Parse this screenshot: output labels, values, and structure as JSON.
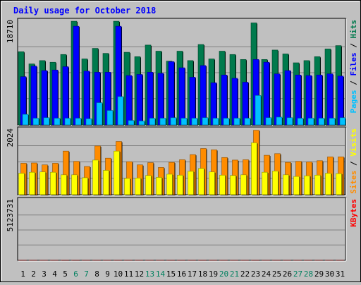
{
  "title": "Daily usage for October 2018",
  "colors": {
    "background": "#c0c0c0",
    "plot_bg": "#c0c0c0",
    "title": "#0000ff",
    "hits": "#007a4d",
    "files": "#0000ff",
    "pages": "#00c0ff",
    "visits": "#ffff00",
    "sites": "#ff8c00",
    "kbytes": "#ff0000",
    "weekday_label": "#000000",
    "weekend_label": "#00805f",
    "grid": "#808080"
  },
  "chart_data": [
    {
      "type": "bar",
      "name": "hits-files-pages",
      "categories": [
        "1",
        "2",
        "3",
        "4",
        "5",
        "6",
        "7",
        "8",
        "9",
        "10",
        "11",
        "12",
        "13",
        "14",
        "15",
        "16",
        "17",
        "18",
        "19",
        "20",
        "21",
        "22",
        "23",
        "24",
        "25",
        "26",
        "27",
        "28",
        "29",
        "30",
        "31"
      ],
      "weekend_days": [
        "6",
        "7",
        "13",
        "14",
        "20",
        "21",
        "27",
        "28"
      ],
      "max_label": "18710",
      "ylim": [
        0,
        18710
      ],
      "right_label_parts": [
        {
          "text": "Pages",
          "color_key": "pages"
        },
        {
          "text": " / ",
          "color_key": "weekday_label"
        },
        {
          "text": "Files",
          "color_key": "files"
        },
        {
          "text": " / ",
          "color_key": "weekday_label"
        },
        {
          "text": "Hits",
          "color_key": "hits"
        }
      ],
      "series": [
        {
          "name": "Hits",
          "color_key": "hits",
          "values": [
            13200,
            11000,
            11600,
            11300,
            12700,
            18700,
            11900,
            13800,
            12900,
            18700,
            13100,
            12300,
            14400,
            13300,
            11500,
            13300,
            11600,
            14500,
            11900,
            13300,
            12700,
            11800,
            18400,
            11800,
            13500,
            12800,
            11200,
            11600,
            12300,
            13700,
            14300
          ]
        },
        {
          "name": "Files",
          "color_key": "files",
          "values": [
            8700,
            10600,
            9800,
            9900,
            10500,
            17800,
            9700,
            9500,
            9500,
            17800,
            8900,
            9100,
            9500,
            9300,
            11400,
            10300,
            8600,
            10700,
            7600,
            9000,
            8400,
            7700,
            11800,
            11300,
            9200,
            9800,
            9000,
            8900,
            9000,
            9200,
            8800
          ]
        },
        {
          "name": "Pages",
          "color_key": "pages",
          "values": [
            1900,
            1200,
            1300,
            1200,
            1200,
            1200,
            1100,
            4000,
            2600,
            5100,
            800,
            700,
            1200,
            1200,
            1300,
            1200,
            1200,
            1300,
            1200,
            1200,
            1200,
            1200,
            5300,
            1300,
            1400,
            1300,
            1200,
            1200,
            1200,
            1200,
            1300
          ]
        }
      ]
    },
    {
      "type": "bar",
      "name": "visits-sites",
      "categories": [
        "1",
        "2",
        "3",
        "4",
        "5",
        "6",
        "7",
        "8",
        "9",
        "10",
        "11",
        "12",
        "13",
        "14",
        "15",
        "16",
        "17",
        "18",
        "19",
        "20",
        "21",
        "22",
        "23",
        "24",
        "25",
        "26",
        "27",
        "28",
        "29",
        "30",
        "31"
      ],
      "max_label": "2024",
      "ylim": [
        0,
        2024
      ],
      "right_label_parts": [
        {
          "text": "Sites",
          "color_key": "sites"
        },
        {
          "text": " / ",
          "color_key": "weekday_label"
        },
        {
          "text": "Visits",
          "color_key": "visits"
        }
      ],
      "series": [
        {
          "name": "Sites",
          "color_key": "sites",
          "values": [
            980,
            990,
            930,
            980,
            1360,
            1040,
            880,
            1520,
            1140,
            1660,
            1030,
            930,
            1000,
            850,
            1010,
            1090,
            1250,
            1440,
            1400,
            1160,
            1080,
            1090,
            2010,
            1230,
            1280,
            1010,
            1040,
            1020,
            1060,
            1180,
            1180
          ]
        },
        {
          "name": "Visits",
          "color_key": "visits",
          "values": [
            670,
            700,
            710,
            700,
            620,
            620,
            530,
            1080,
            760,
            1360,
            510,
            520,
            600,
            540,
            640,
            610,
            730,
            820,
            710,
            610,
            600,
            620,
            1620,
            700,
            740,
            620,
            570,
            590,
            610,
            670,
            660
          ]
        }
      ]
    },
    {
      "type": "bar",
      "name": "kbytes",
      "categories": [
        "1",
        "2",
        "3",
        "4",
        "5",
        "6",
        "7",
        "8",
        "9",
        "10",
        "11",
        "12",
        "13",
        "14",
        "15",
        "16",
        "17",
        "18",
        "19",
        "20",
        "21",
        "22",
        "23",
        "24",
        "25",
        "26",
        "27",
        "28",
        "29",
        "30",
        "31"
      ],
      "max_label": "5123731",
      "ylim": [
        0,
        5123731
      ],
      "right_label_parts": [
        {
          "text": "KBytes",
          "color_key": "kbytes"
        }
      ],
      "series": [
        {
          "name": "KBytes",
          "color_key": "kbytes",
          "values": [
            3300,
            1800,
            1500,
            2300,
            5100,
            4500,
            2200,
            2500,
            1900,
            2800,
            2300,
            2000,
            1900,
            1700,
            2900,
            2600,
            2600,
            3400,
            2500,
            2200,
            1900,
            1900,
            3500,
            1700,
            2500,
            2100,
            2000,
            2200,
            2200,
            2200,
            3200
          ]
        }
      ]
    }
  ]
}
